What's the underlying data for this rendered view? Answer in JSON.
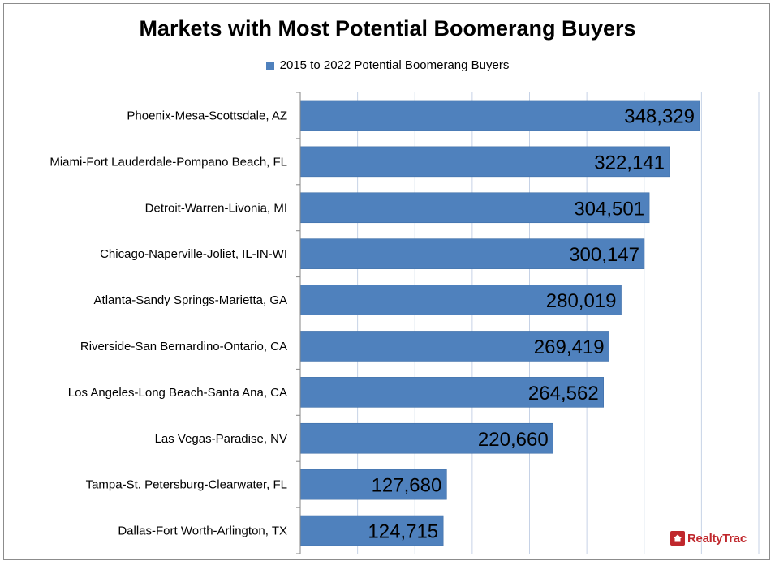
{
  "title": "Markets with Most Potential Boomerang Buyers",
  "legend": {
    "label": "2015 to 2022 Potential Boomerang Buyers",
    "color": "#4f81bd"
  },
  "logo": {
    "text": "RealtyTrac",
    "color": "#c0282d"
  },
  "chart_data": {
    "type": "bar",
    "orientation": "horizontal",
    "title": "Markets with Most Potential Boomerang Buyers",
    "xlabel": "",
    "ylabel": "",
    "xlim": [
      0,
      400000
    ],
    "grid": true,
    "legend_position": "top",
    "bar_color": "#4f81bd",
    "categories": [
      "Phoenix-Mesa-Scottsdale, AZ",
      "Miami-Fort Lauderdale-Pompano Beach, FL",
      "Detroit-Warren-Livonia, MI",
      "Chicago-Naperville-Joliet, IL-IN-WI",
      "Atlanta-Sandy Springs-Marietta, GA",
      "Riverside-San Bernardino-Ontario, CA",
      "Los Angeles-Long Beach-Santa Ana, CA",
      "Las Vegas-Paradise, NV",
      "Tampa-St. Petersburg-Clearwater, FL",
      "Dallas-Fort Worth-Arlington, TX"
    ],
    "series": [
      {
        "name": "2015 to 2022 Potential Boomerang Buyers",
        "values": [
          348329,
          322141,
          304501,
          300147,
          280019,
          269419,
          264562,
          220660,
          127680,
          124715
        ],
        "labels": [
          "348,329",
          "322,141",
          "304,501",
          "300,147",
          "280,019",
          "269,419",
          "264,562",
          "220,660",
          "127,680",
          "124,715"
        ]
      }
    ]
  }
}
